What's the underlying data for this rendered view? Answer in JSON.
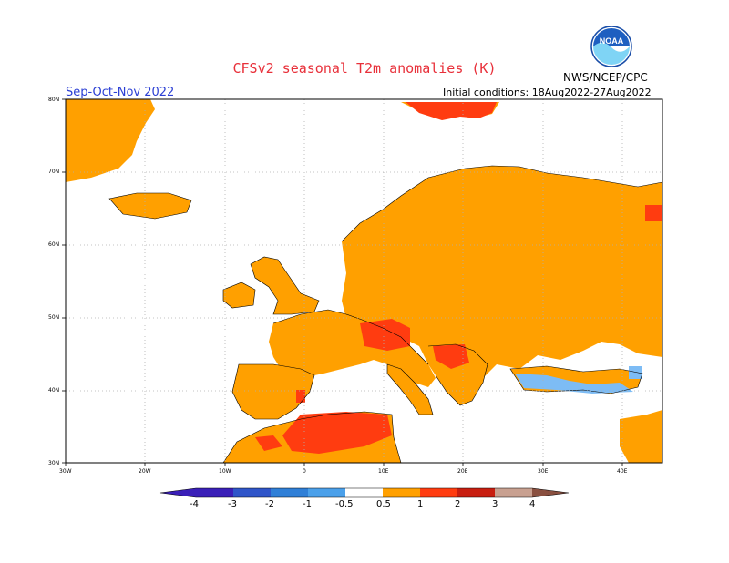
{
  "header": {
    "title": "CFSv2  seasonal  T2m  anomalies  (K)",
    "season": "Sep-Oct-Nov 2022",
    "initial_conditions": "Initial conditions: 18Aug2022-27Aug2022",
    "agency": "NWS/NCEP/CPC",
    "logo_text": "NOAA"
  },
  "axes": {
    "latitudes": [
      "30N",
      "40N",
      "50N",
      "60N",
      "70N",
      "80N"
    ],
    "longitudes": [
      "30W",
      "20W",
      "10W",
      "0",
      "10E",
      "20E",
      "30E",
      "40E"
    ],
    "extent": {
      "lon": [
        -30,
        45
      ],
      "lat": [
        30,
        80
      ]
    }
  },
  "colorbar": {
    "ticks": [
      "-4",
      "-3",
      "-2",
      "-1",
      "-0.5",
      "0.5",
      "1",
      "2",
      "3",
      "4"
    ],
    "colors": [
      "#3a1fb8",
      "#2f55c9",
      "#2f7fd7",
      "#4aa0ea",
      "#7dbcf5",
      "#ffffff",
      "#ffa000",
      "#ff3c10",
      "#c81e10",
      "#7e0f0c",
      "#c8a090",
      "#8a5040"
    ]
  },
  "colors": {
    "land_warm": "#ffa000",
    "warm_strong": "#ff3c10",
    "warm_very_strong": "#c81e10",
    "cool_light": "#7dbcf5",
    "grid": "#b0b0b0"
  }
}
